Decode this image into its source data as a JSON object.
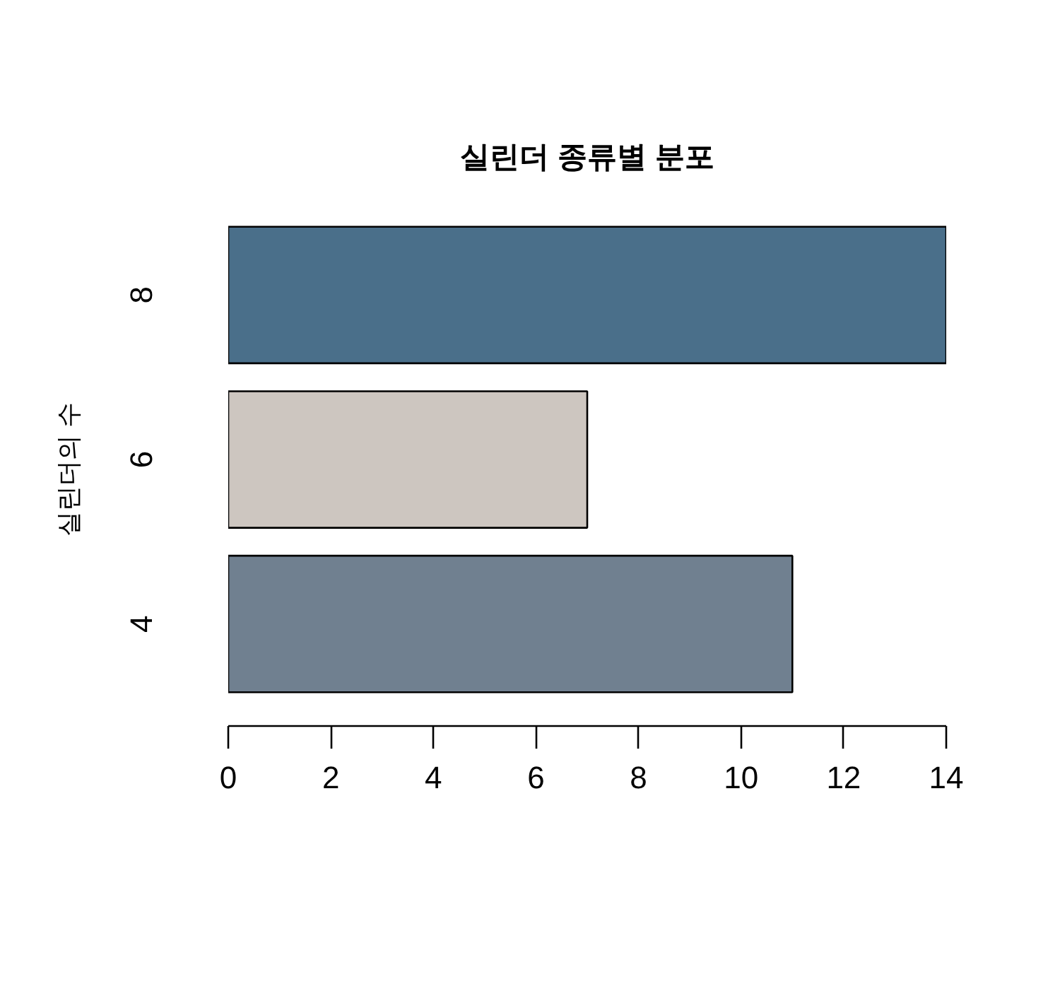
{
  "chart_data": {
    "type": "bar",
    "orientation": "horizontal",
    "title": "실린더 종류별 분포",
    "ylabel": "실린더의 수",
    "categories": [
      "8",
      "6",
      "4"
    ],
    "values": [
      14,
      7,
      11
    ],
    "colors": [
      "#4a6f8a",
      "#cdc6c0",
      "#708090"
    ],
    "xlim": [
      0,
      14
    ],
    "xticks": [
      0,
      2,
      4,
      6,
      8,
      10,
      12,
      14
    ],
    "grid": false
  }
}
